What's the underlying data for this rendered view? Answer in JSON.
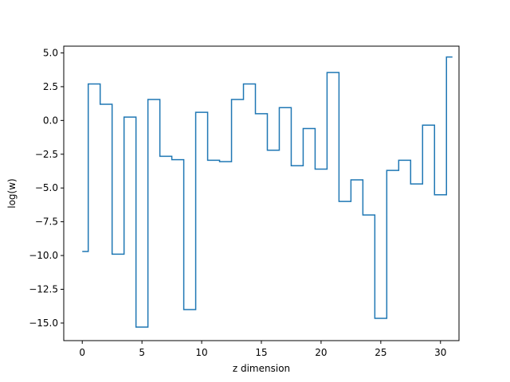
{
  "chart_data": {
    "type": "line",
    "drawstyle": "steps-mid",
    "xlabel": "z dimension",
    "ylabel": "log(w)",
    "xlim": [
      -1.55,
      31.55
    ],
    "ylim": [
      -16.3,
      5.5
    ],
    "xticks": [
      0,
      5,
      10,
      15,
      20,
      25,
      30
    ],
    "yticks": [
      5.0,
      2.5,
      0.0,
      -2.5,
      -5.0,
      -7.5,
      -10.0,
      -12.5,
      -15.0
    ],
    "ytick_labels": [
      "5.0",
      "2.5",
      "0.0",
      "−2.5",
      "−5.0",
      "−7.5",
      "−10.0",
      "−12.5",
      "−15.0"
    ],
    "grid": false,
    "series": [
      {
        "color": "#1f77b4",
        "x": [
          0,
          1,
          2,
          3,
          4,
          5,
          6,
          7,
          8,
          9,
          10,
          11,
          12,
          13,
          14,
          15,
          16,
          17,
          18,
          19,
          20,
          21,
          22,
          23,
          24,
          25,
          26,
          27,
          28,
          29,
          30,
          31
        ],
        "values": [
          -9.7,
          2.7,
          1.2,
          -9.9,
          0.25,
          -15.3,
          1.55,
          -2.65,
          -2.9,
          -14.0,
          0.6,
          -2.95,
          -3.05,
          1.55,
          2.7,
          0.5,
          -2.2,
          0.95,
          -3.35,
          -0.6,
          -3.6,
          3.55,
          -6.0,
          -4.4,
          -7.0,
          -14.65,
          -3.7,
          -2.95,
          -4.7,
          -0.35,
          -5.5,
          4.7
        ]
      }
    ]
  }
}
